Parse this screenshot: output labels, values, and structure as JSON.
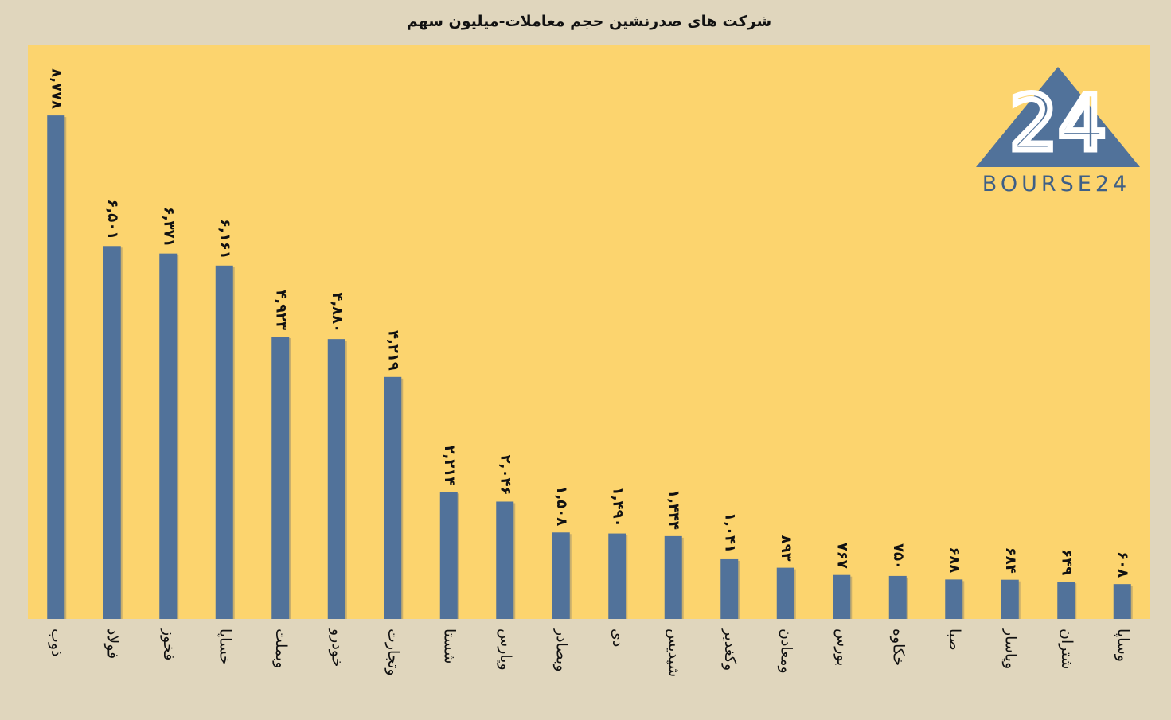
{
  "chart_data": {
    "type": "bar",
    "title": "شرکت های صدرنشین حجم معاملات-میلیون سهم",
    "categories": [
      "ذوب",
      "فولاد",
      "فخوز",
      "خساپا",
      "وبملت",
      "خودرو",
      "وتجارت",
      "شستا",
      "وپارس",
      "وبصادر",
      "دی",
      "شپدیس",
      "وکغدیر",
      "ومعادن",
      "بورس",
      "خکاوه",
      "صبا",
      "وپاسار",
      "شتران",
      "وساپا"
    ],
    "values": [
      8778,
      6501,
      6371,
      6161,
      4923,
      4880,
      4219,
      2214,
      2046,
      1508,
      1490,
      1444,
      1041,
      893,
      767,
      750,
      688,
      684,
      649,
      608
    ],
    "value_labels": [
      "۸,۷۷۸",
      "۶,۵۰۱",
      "۶,۳۷۱",
      "۶,۱۶۱",
      "۴,۹۲۳",
      "۴,۸۸۰",
      "۴,۲۱۹",
      "۲,۲۱۴",
      "۲,۰۴۶",
      "۱,۵۰۸",
      "۱,۴۹۰",
      "۱,۴۴۴",
      "۱,۰۴۱",
      "۸۹۳",
      "۷۶۷",
      "۷۵۰",
      "۶۸۸",
      "۶۸۴",
      "۶۴۹",
      "۶۰۸"
    ],
    "color": "#51729a",
    "ylim": [
      0,
      10000
    ]
  },
  "logo": {
    "mark": "24",
    "text": "BOURSE24"
  }
}
